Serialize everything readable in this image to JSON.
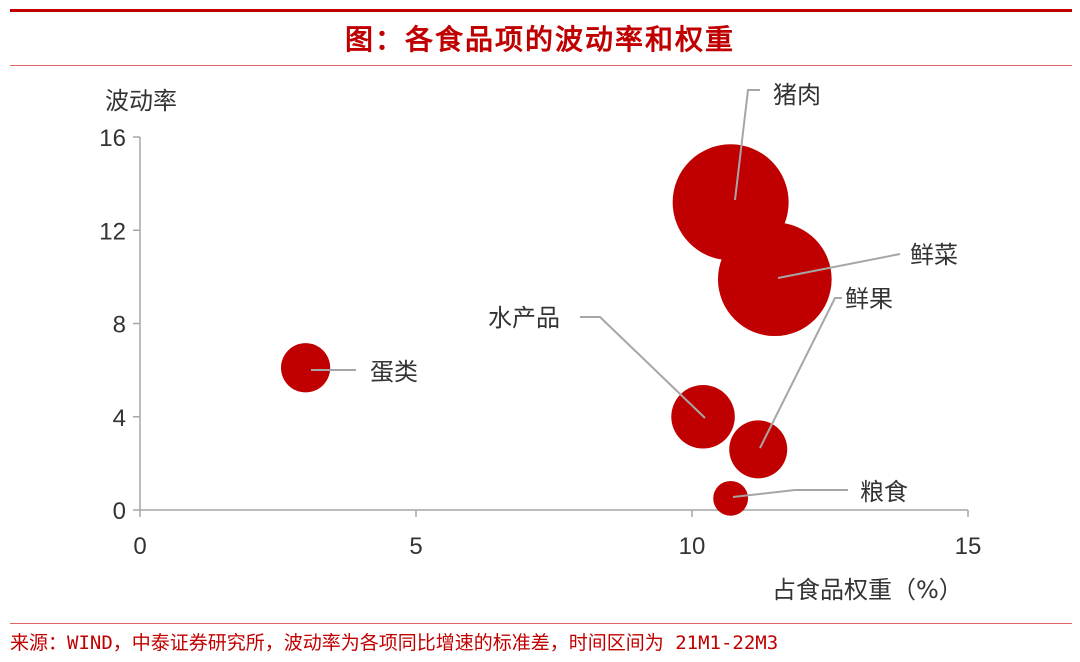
{
  "title": "图：各食品项的波动率和权重",
  "source": "来源：WIND，中泰证券研究所，波动率为各项同比增速的标准差，时间区间为 21M1-22M3",
  "chart_data": {
    "type": "scatter",
    "title": "图：各食品项的波动率和权重",
    "xlabel": "占食品权重（%）",
    "ylabel": "波动率",
    "xlim": [
      0,
      15
    ],
    "ylim": [
      0,
      16
    ],
    "xticks": [
      "0",
      "5",
      "10",
      "15"
    ],
    "yticks": [
      "0",
      "4",
      "8",
      "12",
      "16"
    ],
    "grid": false,
    "bubble_size": "proportional",
    "color": "#c00000",
    "points": [
      {
        "label": "猪肉",
        "x": 10.7,
        "y": 13.2,
        "size": 1.0
      },
      {
        "label": "鲜菜",
        "x": 11.5,
        "y": 9.9,
        "size": 0.96
      },
      {
        "label": "水产品",
        "x": 10.2,
        "y": 4.0,
        "size": 0.3
      },
      {
        "label": "鲜果",
        "x": 11.2,
        "y": 2.6,
        "size": 0.25
      },
      {
        "label": "蛋类",
        "x": 3.0,
        "y": 6.1,
        "size": 0.18
      },
      {
        "label": "粮食",
        "x": 10.7,
        "y": 0.5,
        "size": 0.09
      }
    ]
  }
}
